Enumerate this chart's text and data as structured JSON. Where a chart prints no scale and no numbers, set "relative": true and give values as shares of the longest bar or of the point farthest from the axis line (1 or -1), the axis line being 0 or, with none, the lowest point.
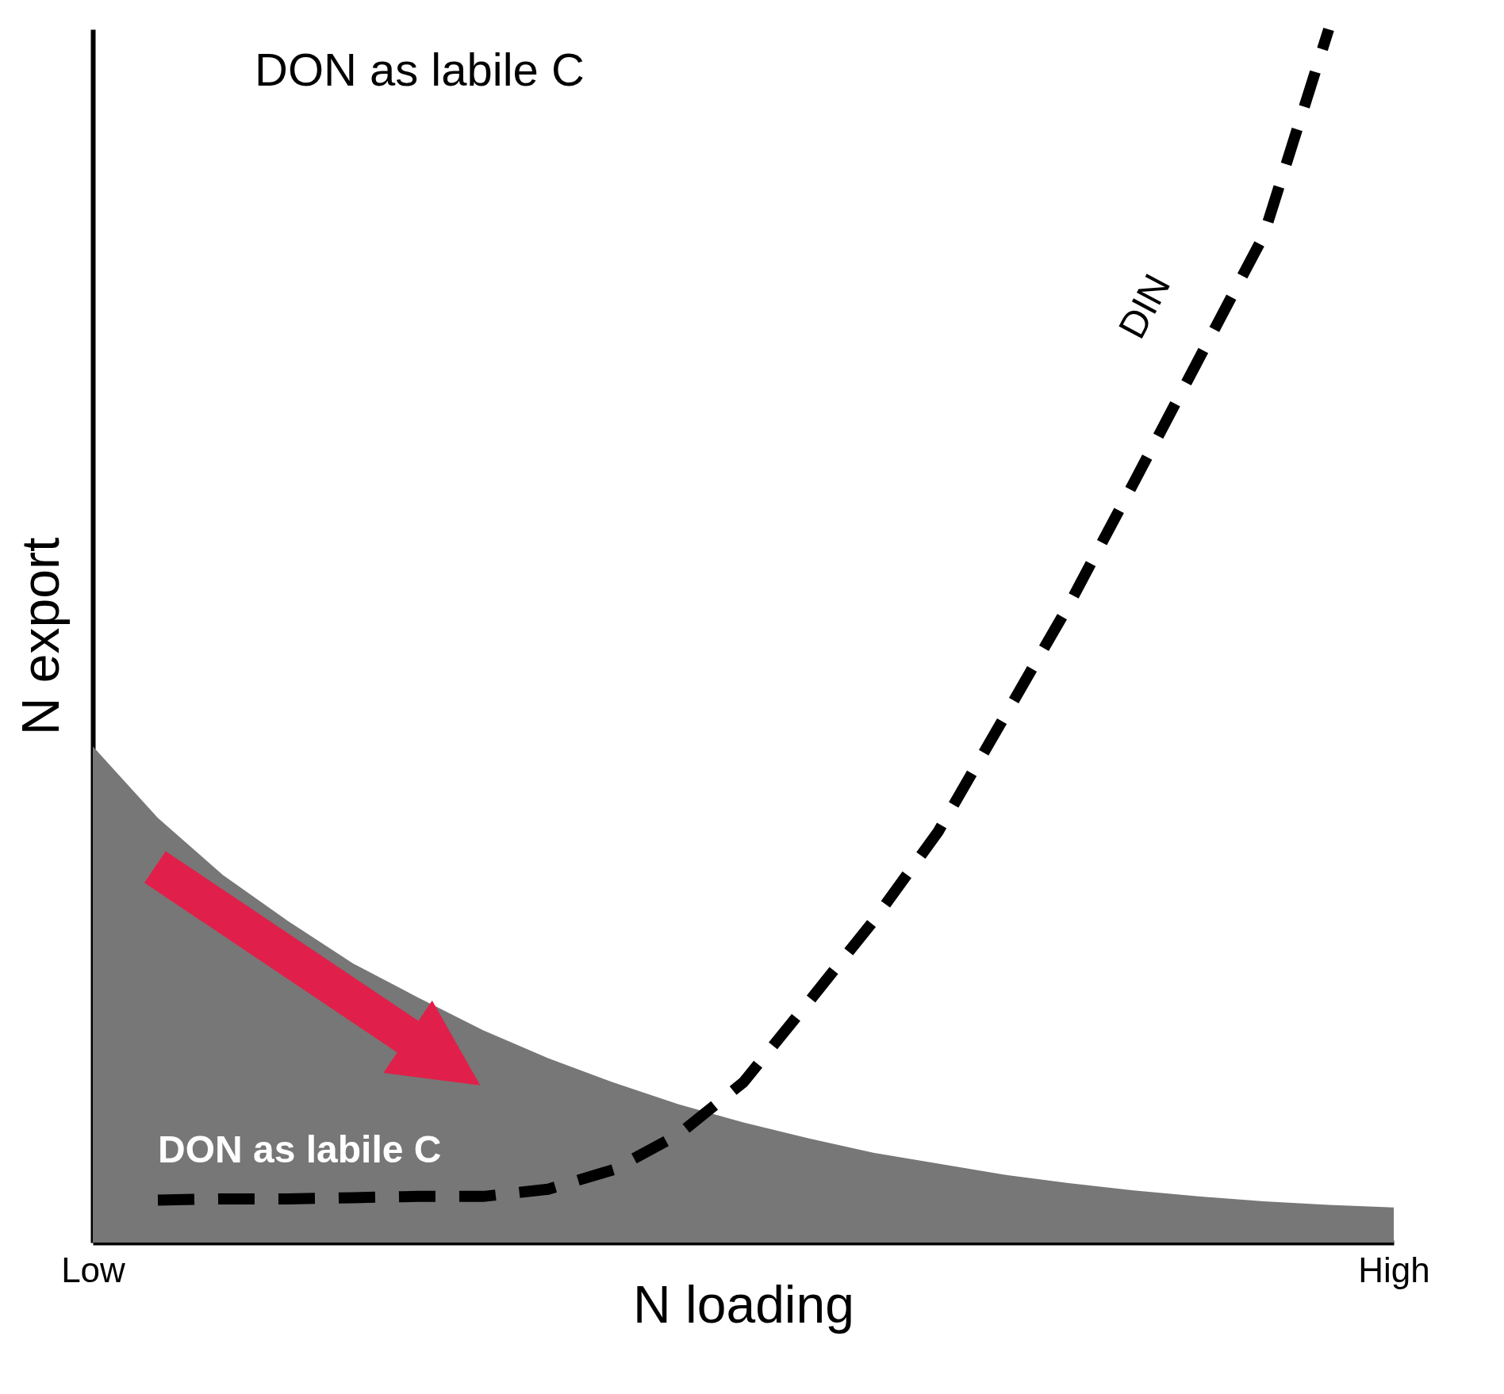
{
  "chart_data": {
    "type": "area",
    "title": "DON as labile C",
    "xlabel": "N loading",
    "ylabel": "N export",
    "relative": true,
    "tick_labels": "x",
    "legend": false,
    "grid": false,
    "categories": [
      "Low",
      null,
      null,
      null,
      null,
      null,
      null,
      null,
      null,
      null,
      null,
      null,
      null,
      null,
      null,
      null,
      null,
      null,
      null,
      null,
      "High"
    ],
    "series": [
      {
        "name": "DON as labile C",
        "type": "area",
        "color": "#777777",
        "values": [
          0.409,
          0.35,
          0.303,
          0.265,
          0.23,
          0.202,
          0.175,
          0.152,
          0.132,
          0.114,
          0.099,
          0.086,
          0.074,
          0.065,
          0.056,
          0.049,
          0.043,
          0.038,
          0.034,
          0.031,
          0.029
        ]
      },
      {
        "name": "DIN",
        "type": "line",
        "line_style": "dashed",
        "color": "#000000",
        "values": [
          null,
          0.035,
          0.036,
          0.036,
          0.037,
          0.038,
          0.038,
          0.044,
          0.06,
          0.089,
          0.132,
          0.198,
          0.265,
          0.339,
          0.432,
          0.525,
          0.626,
          0.728,
          0.83,
          1,
          null
        ]
      }
    ]
  }
}
